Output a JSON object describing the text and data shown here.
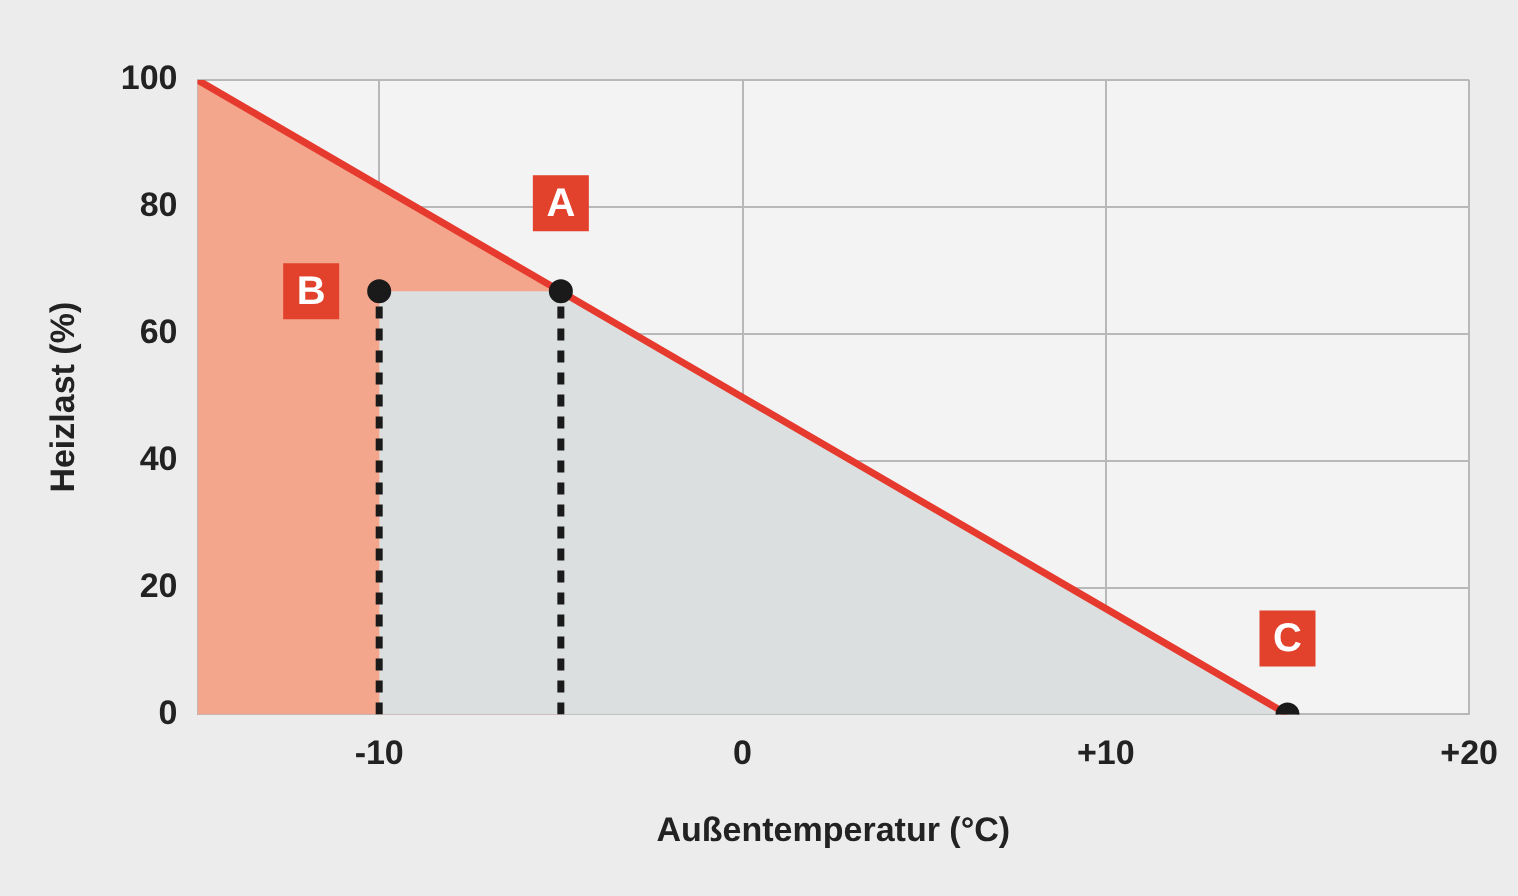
{
  "chart_data": {
    "type": "line",
    "xlabel": "Außentemperatur (°C)",
    "ylabel": "Heizlast (%)",
    "xlim": [
      -15,
      20
    ],
    "xticks": [
      -10,
      0,
      {
        "value": 10,
        "label": "+10"
      },
      {
        "value": 20,
        "label": "+20"
      }
    ],
    "ylim": [
      0,
      100
    ],
    "yticks": [
      0,
      20,
      40,
      60,
      80,
      100
    ],
    "grid": true,
    "legend": false,
    "series": [
      {
        "type": "area",
        "color": "#f4a68c",
        "x": [
          -15,
          -10,
          -5
        ],
        "values": [
          100,
          83.3,
          66.7
        ]
      },
      {
        "type": "area",
        "color": "#dcdfdf",
        "x": [
          -10,
          -5,
          15
        ],
        "values": [
          66.7,
          66.7,
          0
        ]
      },
      {
        "type": "line",
        "color": "#e63a2e",
        "x": [
          -15,
          15
        ],
        "values": [
          100,
          0
        ],
        "marker": "none",
        "line_style": "solid"
      },
      {
        "type": "line",
        "color": "#1a1a1a",
        "x": [
          -10,
          -10
        ],
        "values": [
          0,
          66.7
        ],
        "marker": "none",
        "line_style": "dashed"
      },
      {
        "type": "line",
        "color": "#1a1a1a",
        "x": [
          -5,
          -5
        ],
        "values": [
          0,
          66.7
        ],
        "marker": "none",
        "line_style": "dashed"
      },
      {
        "type": "scatter",
        "color": "#1a1a1a",
        "x": [
          -5,
          -10,
          15
        ],
        "values": [
          66.7,
          66.7,
          0
        ],
        "marker": "circle"
      }
    ],
    "annotations": [
      {
        "text": "A",
        "x": -5,
        "y": 66.7
      },
      {
        "text": "B",
        "x": -10,
        "y": 66.7
      },
      {
        "text": "C",
        "x": 15,
        "y": 0
      }
    ]
  }
}
